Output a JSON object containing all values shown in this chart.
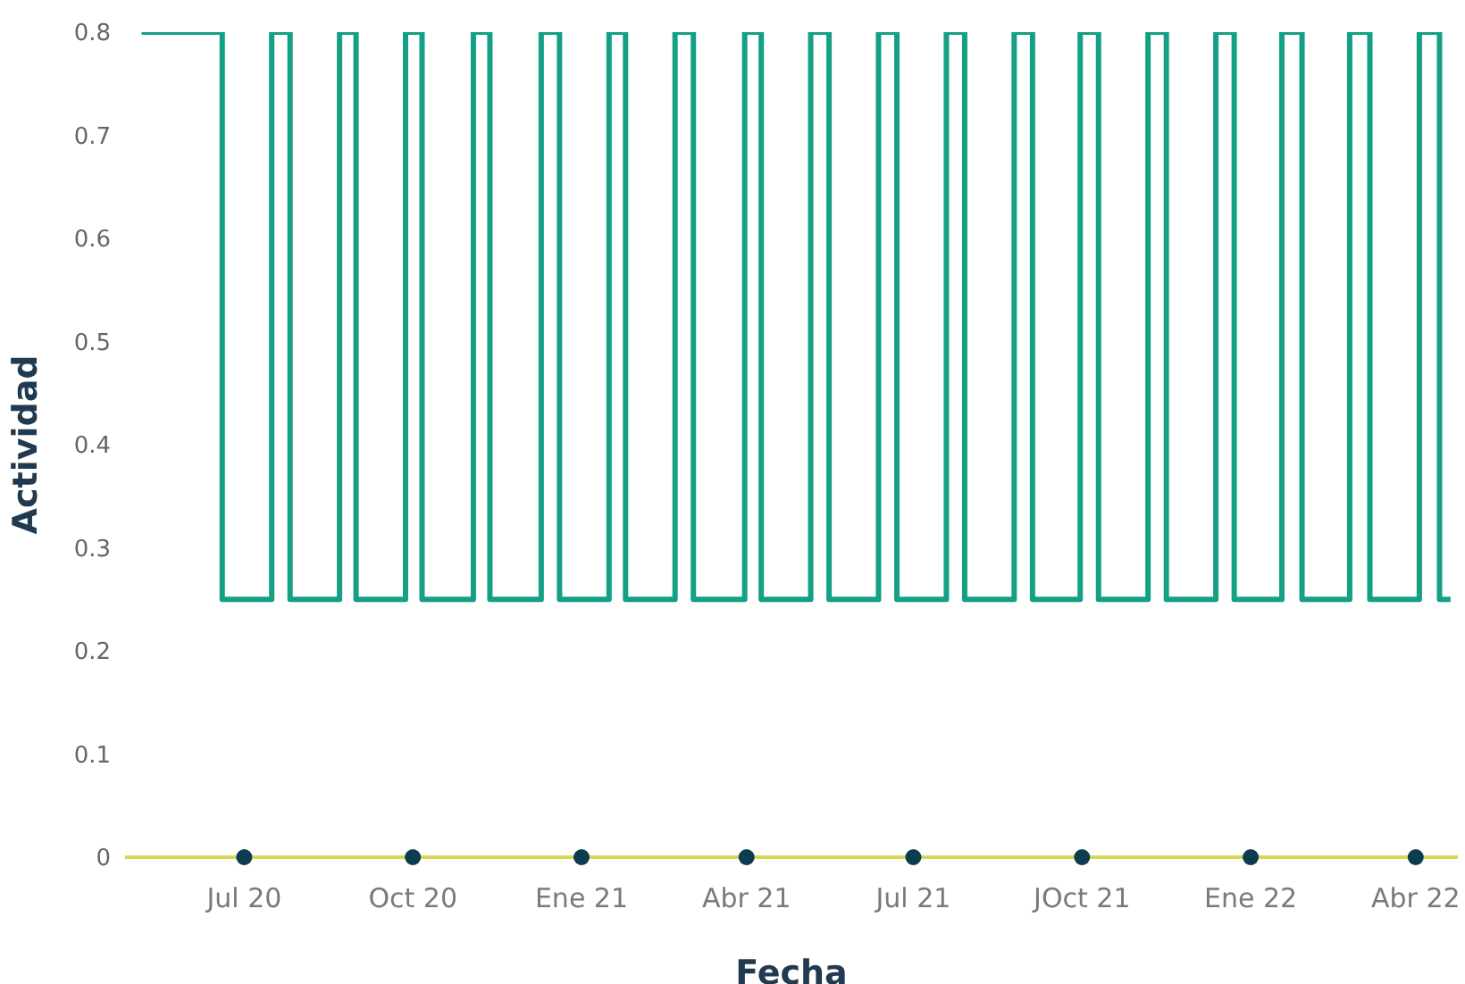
{
  "chart_data": {
    "type": "step",
    "xlabel": "Fecha",
    "ylabel": "Actividad",
    "x": [
      "2020-05-06",
      "2020-06-19",
      "2020-07-16",
      "2020-07-26",
      "2020-08-22",
      "2020-08-31",
      "2020-09-27",
      "2020-10-06",
      "2020-11-03",
      "2020-11-12",
      "2020-12-10",
      "2020-12-20",
      "2021-01-16",
      "2021-01-25",
      "2021-02-21",
      "2021-03-03",
      "2021-03-31",
      "2021-04-09",
      "2021-05-06",
      "2021-05-16",
      "2021-06-12",
      "2021-06-22",
      "2021-07-19",
      "2021-07-29",
      "2021-08-25",
      "2021-09-04",
      "2021-09-30",
      "2021-10-10",
      "2021-11-06",
      "2021-11-16",
      "2021-12-13",
      "2021-12-23",
      "2022-01-18",
      "2022-01-29",
      "2022-02-24",
      "2022-03-07",
      "2022-04-03",
      "2022-04-14",
      "2022-04-20"
    ],
    "series": [
      {
        "color": "#13a085",
        "values": [
          0.8,
          0.25,
          0.8,
          0.25,
          0.8,
          0.25,
          0.8,
          0.25,
          0.8,
          0.25,
          0.8,
          0.25,
          0.8,
          0.25,
          0.8,
          0.25,
          0.8,
          0.25,
          0.8,
          0.25,
          0.8,
          0.25,
          0.8,
          0.25,
          0.8,
          0.25,
          0.8,
          0.25,
          0.8,
          0.25,
          0.8,
          0.25,
          0.8,
          0.25,
          0.8,
          0.25,
          0.8,
          0.25,
          0.25
        ]
      }
    ],
    "xlim": [
      "2020-04-27",
      "2022-04-24"
    ],
    "xticks": [
      {
        "value": "2020-07-01",
        "label": "Jul 20"
      },
      {
        "value": "2020-10-01",
        "label": "Oct 20"
      },
      {
        "value": "2021-01-01",
        "label": "Ene 21"
      },
      {
        "value": "2021-04-01",
        "label": "Abr 21"
      },
      {
        "value": "2021-07-01",
        "label": "Jul 21"
      },
      {
        "value": "2021-10-01",
        "label": "JOct 21"
      },
      {
        "value": "2022-01-01",
        "label": "Ene 22"
      },
      {
        "value": "2022-04-01",
        "label": "Abr 22"
      }
    ],
    "ylim": [
      0,
      0.8
    ],
    "yticks": [
      0,
      0.1,
      0.2,
      0.3,
      0.4,
      0.5,
      0.6,
      0.7,
      0.8
    ],
    "grid": false,
    "legend": false,
    "marker": "none",
    "line_style": "solid"
  }
}
